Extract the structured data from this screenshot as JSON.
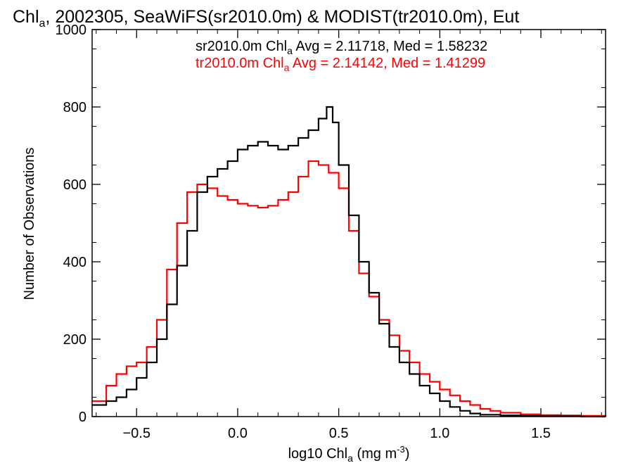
{
  "chart_data": {
    "type": "histogram-step",
    "title": {
      "prefix": "Chl",
      "sub": "a",
      "rest": ", 2002305, SeaWiFS(sr2010.0m) & MODIST(tr2010.0m), Eut"
    },
    "xlabel": {
      "pre": "log10 Chl",
      "sub": "a",
      "mid": " (mg m",
      "sup": "-3",
      "post": ")"
    },
    "ylabel": "Number of Observations",
    "xlim": [
      -0.72,
      1.82
    ],
    "ylim": [
      0,
      1000
    ],
    "xticks": [
      -0.5,
      0.0,
      0.5,
      1.0,
      1.5
    ],
    "xtick_labels": [
      "−0.5",
      "0.0",
      "0.5",
      "1.0",
      "1.5"
    ],
    "yticks": [
      0,
      200,
      400,
      600,
      800,
      1000
    ],
    "ytick_labels": [
      "0",
      "200",
      "400",
      "600",
      "800",
      "1000"
    ],
    "grid": false,
    "annotations": [
      {
        "pre": "sr2010.0m Chl",
        "sub": "a",
        "post": " Avg = 2.11718, Med = 1.58232",
        "color": "#000000"
      },
      {
        "pre": "tr2010.0m Chl",
        "sub": "a",
        "post": " Avg = 2.14142, Med = 1.41299",
        "color": "#ff0000"
      }
    ],
    "series": [
      {
        "name": "sr2010.0m",
        "color": "#000000",
        "points": [
          [
            -0.72,
            30
          ],
          [
            -0.65,
            40
          ],
          [
            -0.6,
            50
          ],
          [
            -0.55,
            70
          ],
          [
            -0.5,
            100
          ],
          [
            -0.45,
            140
          ],
          [
            -0.4,
            200
          ],
          [
            -0.35,
            290
          ],
          [
            -0.3,
            390
          ],
          [
            -0.25,
            480
          ],
          [
            -0.2,
            580
          ],
          [
            -0.15,
            620
          ],
          [
            -0.1,
            640
          ],
          [
            -0.05,
            660
          ],
          [
            0.0,
            690
          ],
          [
            0.05,
            700
          ],
          [
            0.1,
            710
          ],
          [
            0.15,
            700
          ],
          [
            0.2,
            690
          ],
          [
            0.25,
            700
          ],
          [
            0.3,
            720
          ],
          [
            0.35,
            740
          ],
          [
            0.4,
            770
          ],
          [
            0.44,
            800
          ],
          [
            0.47,
            760
          ],
          [
            0.5,
            650
          ],
          [
            0.55,
            520
          ],
          [
            0.6,
            400
          ],
          [
            0.65,
            320
          ],
          [
            0.7,
            240
          ],
          [
            0.75,
            180
          ],
          [
            0.8,
            140
          ],
          [
            0.85,
            110
          ],
          [
            0.9,
            80
          ],
          [
            0.95,
            60
          ],
          [
            1.0,
            40
          ],
          [
            1.05,
            25
          ],
          [
            1.1,
            15
          ],
          [
            1.15,
            8
          ],
          [
            1.2,
            5
          ],
          [
            1.3,
            3
          ],
          [
            1.4,
            2
          ],
          [
            1.5,
            1
          ],
          [
            1.6,
            1
          ],
          [
            1.7,
            0
          ],
          [
            1.82,
            0
          ]
        ]
      },
      {
        "name": "tr2010.0m",
        "color": "#ff0000",
        "points": [
          [
            -0.72,
            40
          ],
          [
            -0.65,
            80
          ],
          [
            -0.6,
            110
          ],
          [
            -0.55,
            130
          ],
          [
            -0.5,
            140
          ],
          [
            -0.45,
            180
          ],
          [
            -0.4,
            250
          ],
          [
            -0.35,
            380
          ],
          [
            -0.3,
            500
          ],
          [
            -0.25,
            580
          ],
          [
            -0.2,
            600
          ],
          [
            -0.15,
            590
          ],
          [
            -0.1,
            570
          ],
          [
            -0.05,
            560
          ],
          [
            0.0,
            550
          ],
          [
            0.05,
            545
          ],
          [
            0.1,
            540
          ],
          [
            0.15,
            545
          ],
          [
            0.2,
            560
          ],
          [
            0.25,
            580
          ],
          [
            0.3,
            620
          ],
          [
            0.35,
            660
          ],
          [
            0.4,
            650
          ],
          [
            0.45,
            630
          ],
          [
            0.5,
            590
          ],
          [
            0.55,
            480
          ],
          [
            0.6,
            370
          ],
          [
            0.65,
            310
          ],
          [
            0.7,
            250
          ],
          [
            0.75,
            210
          ],
          [
            0.8,
            170
          ],
          [
            0.85,
            140
          ],
          [
            0.9,
            110
          ],
          [
            0.95,
            90
          ],
          [
            1.0,
            70
          ],
          [
            1.05,
            55
          ],
          [
            1.1,
            40
          ],
          [
            1.15,
            30
          ],
          [
            1.2,
            20
          ],
          [
            1.25,
            15
          ],
          [
            1.3,
            10
          ],
          [
            1.4,
            6
          ],
          [
            1.5,
            4
          ],
          [
            1.6,
            3
          ],
          [
            1.7,
            2
          ],
          [
            1.82,
            1
          ]
        ]
      }
    ]
  }
}
